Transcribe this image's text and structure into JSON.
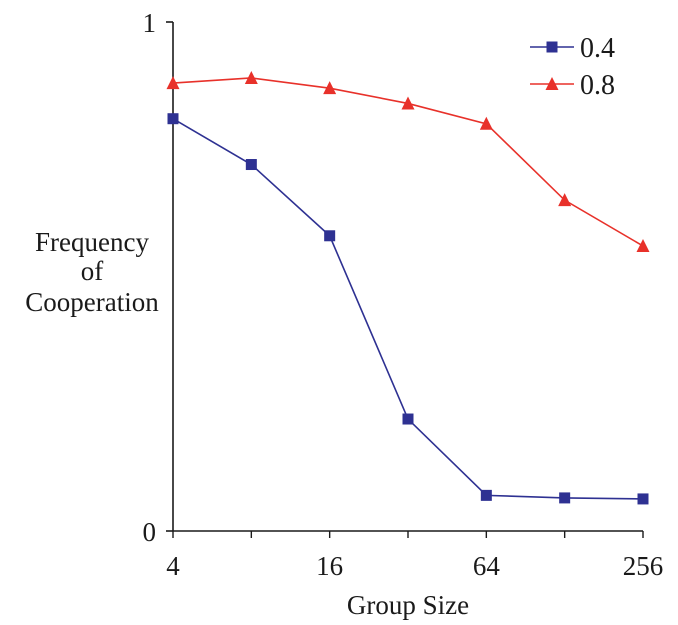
{
  "chart_data": {
    "type": "line",
    "title": "",
    "xlabel": "Group Size",
    "ylabel_lines": [
      "Frequency",
      "of",
      "Cooperation"
    ],
    "x_scale": "log2",
    "x": [
      4,
      8,
      16,
      32,
      64,
      128,
      256
    ],
    "x_ticks": [
      4,
      16,
      64,
      256
    ],
    "x_tick_labels": [
      "4",
      "16",
      "64",
      "256"
    ],
    "ylim": [
      0,
      1
    ],
    "y_ticks": [
      0,
      1
    ],
    "y_tick_labels": [
      "0",
      "1"
    ],
    "grid": false,
    "legend_position": "top-right",
    "series": [
      {
        "name": "0.4",
        "color": "#2e3192",
        "marker": "square",
        "values": [
          0.81,
          0.72,
          0.58,
          0.22,
          0.07,
          0.065,
          0.063
        ]
      },
      {
        "name": "0.8",
        "color": "#e8312a",
        "marker": "triangle",
        "values": [
          0.88,
          0.89,
          0.87,
          0.84,
          0.8,
          0.65,
          0.56
        ]
      }
    ]
  }
}
